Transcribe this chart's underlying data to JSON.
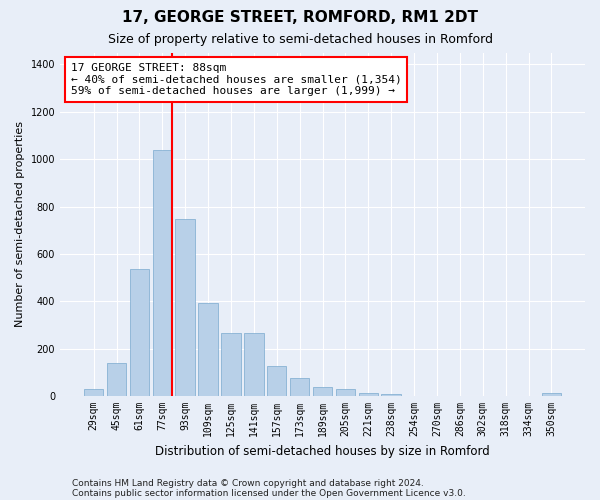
{
  "title": "17, GEORGE STREET, ROMFORD, RM1 2DT",
  "subtitle": "Size of property relative to semi-detached houses in Romford",
  "xlabel": "Distribution of semi-detached houses by size in Romford",
  "ylabel": "Number of semi-detached properties",
  "categories": [
    "29sqm",
    "45sqm",
    "61sqm",
    "77sqm",
    "93sqm",
    "109sqm",
    "125sqm",
    "141sqm",
    "157sqm",
    "173sqm",
    "189sqm",
    "205sqm",
    "221sqm",
    "238sqm",
    "254sqm",
    "270sqm",
    "286sqm",
    "302sqm",
    "318sqm",
    "334sqm",
    "350sqm"
  ],
  "values": [
    28,
    140,
    535,
    1040,
    748,
    393,
    265,
    265,
    125,
    75,
    38,
    30,
    15,
    10,
    0,
    0,
    0,
    0,
    0,
    0,
    13
  ],
  "bar_color": "#b8d0e8",
  "bar_edgecolor": "#7aaace",
  "annotation_text": "17 GEORGE STREET: 88sqm\n← 40% of semi-detached houses are smaller (1,354)\n59% of semi-detached houses are larger (1,999) →",
  "annotation_box_color": "white",
  "annotation_box_edgecolor": "red",
  "vline_color": "red",
  "ylim": [
    0,
    1450
  ],
  "yticks": [
    0,
    200,
    400,
    600,
    800,
    1000,
    1200,
    1400
  ],
  "footer1": "Contains HM Land Registry data © Crown copyright and database right 2024.",
  "footer2": "Contains public sector information licensed under the Open Government Licence v3.0.",
  "background_color": "#e8eef8",
  "plot_background_color": "#e8eef8",
  "grid_color": "#ffffff",
  "title_fontsize": 11,
  "subtitle_fontsize": 9,
  "annotation_fontsize": 8,
  "footer_fontsize": 6.5,
  "ylabel_fontsize": 8,
  "xlabel_fontsize": 8.5,
  "tick_fontsize": 7
}
